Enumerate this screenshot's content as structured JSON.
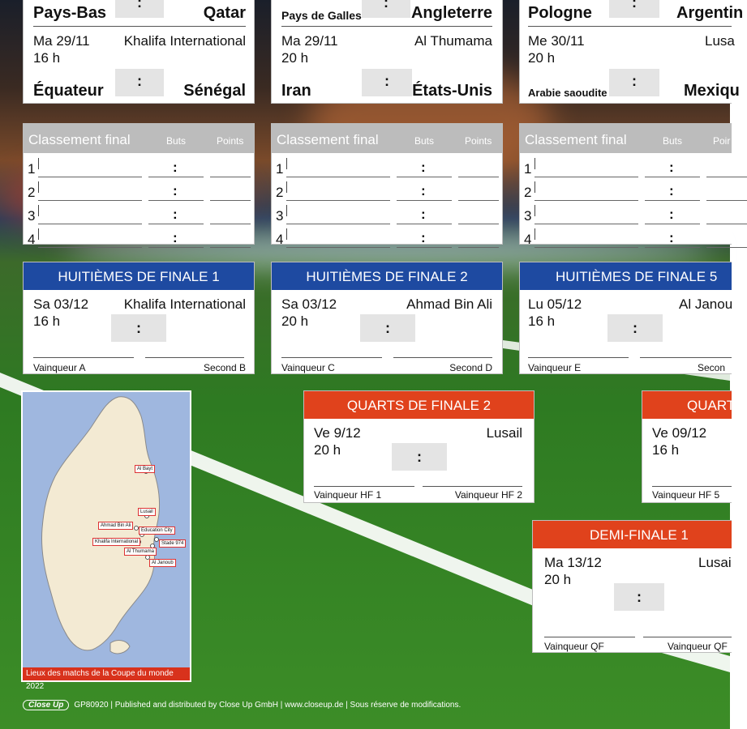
{
  "groups": [
    {
      "m1": {
        "home": "Pays-Bas",
        "away": "Qatar",
        "score": ":"
      },
      "m2": {
        "date": "Ma 29/11",
        "time": "16 h",
        "venue": "Khalifa International",
        "home": "Équateur",
        "away": "Sénégal",
        "score": ":"
      },
      "standing": {
        "title": "Classement final",
        "buts": "Buts",
        "points": "Points",
        "rows": [
          "1",
          "2",
          "3",
          "4"
        ],
        "colon": ":"
      }
    },
    {
      "m1": {
        "home": "Pays de Galles",
        "away": "Angleterre",
        "score": ":"
      },
      "m2": {
        "date": "Ma 29/11",
        "time": "20 h",
        "venue": "Al Thumama",
        "home": "Iran",
        "away": "États-Unis",
        "score": ":"
      },
      "standing": {
        "title": "Classement final",
        "buts": "Buts",
        "points": "Points",
        "rows": [
          "1",
          "2",
          "3",
          "4"
        ],
        "colon": ":"
      }
    },
    {
      "m1": {
        "home": "Pologne",
        "away": "Argentin",
        "score": ":"
      },
      "m2": {
        "date": "Me 30/11",
        "time": "20 h",
        "venue": "Lusa",
        "home": "Arabie saoudite",
        "away": "Mexiqu",
        "score": ":"
      },
      "standing": {
        "title": "Classement final",
        "buts": "Buts",
        "points": "Poir",
        "rows": [
          "1",
          "2",
          "3",
          "4"
        ],
        "colon": ":"
      }
    }
  ],
  "r16": [
    {
      "title": "HUITIÈMES DE FINALE 1",
      "date": "Sa 03/12",
      "time": "16 h",
      "venue": "Khalifa International",
      "score": ":",
      "left": "Vainqueur A",
      "right": "Second B"
    },
    {
      "title": "HUITIÈMES DE FINALE 2",
      "date": "Sa 03/12",
      "time": "20 h",
      "venue": "Ahmad Bin Ali",
      "score": ":",
      "left": "Vainqueur C",
      "right": "Second D"
    },
    {
      "title": "HUITIÈMES DE FINALE 5",
      "date": "Lu 05/12",
      "time": "16 h",
      "venue": "Al Janou",
      "score": ":",
      "left": "Vainqueur E",
      "right": "Secon"
    }
  ],
  "qf": [
    {
      "title": "QUARTS DE FINALE 2",
      "date": "Ve 9/12",
      "time": "20 h",
      "venue": "Lusail",
      "score": ":",
      "left": "Vainqueur HF 1",
      "right": "Vainqueur HF 2"
    },
    {
      "title": "QUART",
      "date": "Ve 09/12",
      "time": "16 h",
      "venue": "",
      "score": "",
      "left": "Vainqueur HF 5",
      "right": ""
    }
  ],
  "sf": {
    "title": "DEMI-FINALE 1",
    "date": "Ma 13/12",
    "time": "20 h",
    "venue": "Lusai",
    "score": ":",
    "left": "Vainqueur QF",
    "right": "Vainqueur QF"
  },
  "map": {
    "caption": "Lieux des matchs de la Coupe du monde 2022",
    "labels": [
      "Al Bayt",
      "Lusail",
      "Ahmad Bin Ali",
      "Education City",
      "Khalifa International",
      "Stade 974",
      "Al Thumama",
      "Al Janoub"
    ]
  },
  "footer": {
    "logo": "Close Up",
    "text": "GP80920 | Published and distributed by Close Up GmbH | www.closeup.de | Sous réserve de modifications."
  },
  "colors": {
    "round16": "#1e4aa1",
    "quarter": "#e0421c",
    "grass": "#3c8d27"
  }
}
